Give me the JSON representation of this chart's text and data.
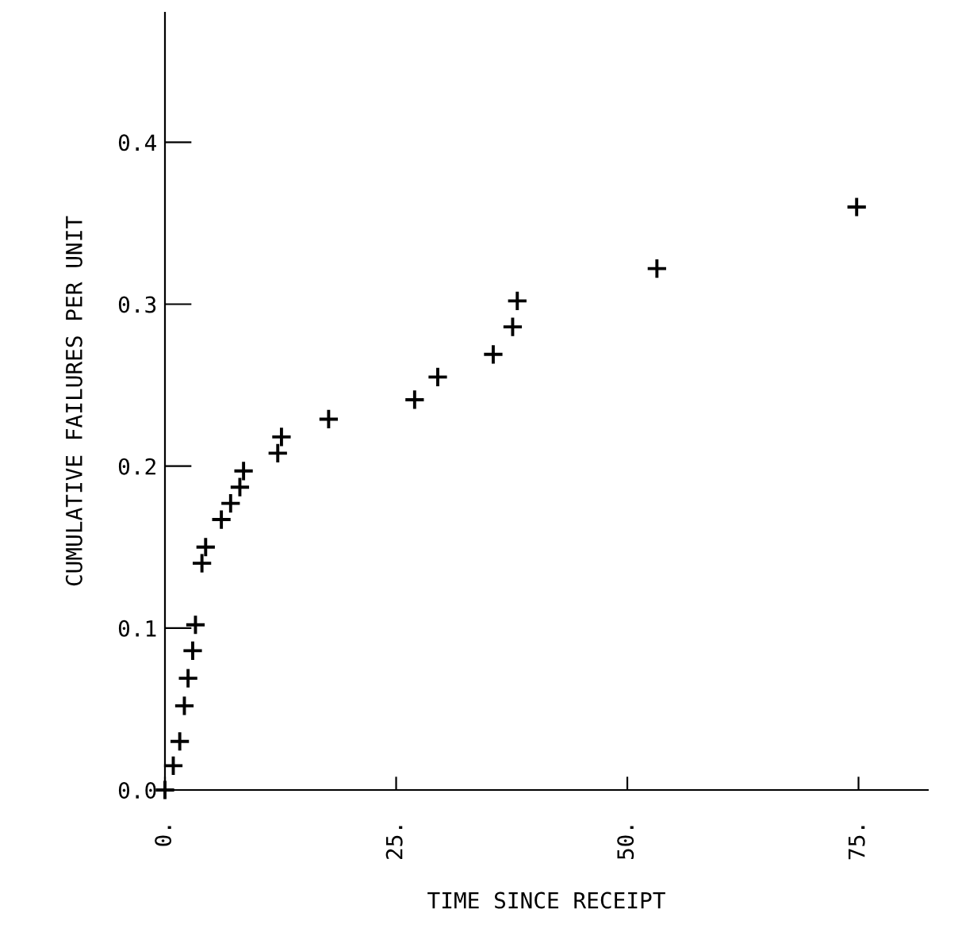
{
  "chart_data": {
    "type": "scatter",
    "xlabel": "TIME SINCE RECEIPT",
    "ylabel": "CUMULATIVE FAILURES PER UNIT",
    "series": [
      {
        "color": "#000000",
        "x": [
          0,
          0.9,
          1.6,
          2.1,
          2.5,
          3.0,
          3.3,
          4.0,
          4.4,
          6.1,
          7.1,
          8.1,
          8.5,
          12.2,
          12.6,
          17.7,
          27.0,
          29.5,
          35.5,
          37.6,
          38.1,
          53.2,
          74.8
        ],
        "values": [
          0,
          0.015,
          0.03,
          0.052,
          0.069,
          0.086,
          0.102,
          0.14,
          0.15,
          0.167,
          0.177,
          0.187,
          0.197,
          0.208,
          0.218,
          0.229,
          0.241,
          0.255,
          0.269,
          0.286,
          0.302,
          0.322,
          0.36
        ]
      }
    ],
    "marker": "cross",
    "xlim": [
      0,
      82.5
    ],
    "xticks": [
      {
        "value": 0,
        "label": "0."
      },
      {
        "value": 25,
        "label": "25."
      },
      {
        "value": 50,
        "label": "50."
      },
      {
        "value": 75,
        "label": "75."
      }
    ],
    "ylim": [
      0,
      0.48
    ],
    "yticks": [
      {
        "value": 0,
        "label": "0.0"
      },
      {
        "value": 0.1,
        "label": "0.1"
      },
      {
        "value": 0.2,
        "label": "0.2"
      },
      {
        "value": 0.3,
        "label": "0.3"
      },
      {
        "value": 0.4,
        "label": "0.4"
      }
    ],
    "grid": false,
    "legend": false
  }
}
